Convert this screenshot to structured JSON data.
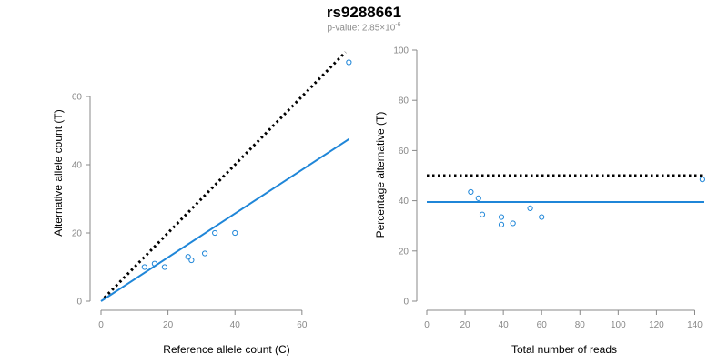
{
  "header": {
    "title": "rs9288661",
    "pvalue_prefix": "p-value: 2.85×10",
    "pvalue_exp": "-6"
  },
  "colors": {
    "points": "#1f86d8",
    "fit": "#1f86d8",
    "reference": "#000000",
    "axis": "#888888"
  },
  "chart_data": [
    {
      "type": "scatter",
      "xlabel": "Reference allele count (C)",
      "ylabel": "Alternative allele count (T)",
      "xlim": [
        0,
        72
      ],
      "ylim": [
        0,
        60
      ],
      "xticks": [
        0,
        20,
        40,
        60
      ],
      "yticks": [
        0,
        20,
        40,
        60
      ],
      "grid": false,
      "points": [
        {
          "x": 13,
          "y": 10
        },
        {
          "x": 16,
          "y": 11
        },
        {
          "x": 19,
          "y": 10
        },
        {
          "x": 26,
          "y": 13
        },
        {
          "x": 27,
          "y": 12
        },
        {
          "x": 31,
          "y": 14
        },
        {
          "x": 34,
          "y": 20
        },
        {
          "x": 40,
          "y": 20
        },
        {
          "x": 74,
          "y": 70
        }
      ],
      "lines": [
        {
          "style": "dotted",
          "color": "#000000",
          "from": [
            1,
            1
          ],
          "to": [
            73,
            73
          ]
        },
        {
          "style": "solid",
          "color": "#1f86d8",
          "from": [
            0,
            0
          ],
          "to": [
            74,
            47.5
          ]
        }
      ]
    },
    {
      "type": "scatter",
      "xlabel": "Total number of reads",
      "ylabel": "Percentage alternative (T)",
      "xlim": [
        0,
        145
      ],
      "ylim": [
        0,
        100
      ],
      "xticks": [
        0,
        20,
        40,
        60,
        80,
        100,
        120,
        140
      ],
      "yticks": [
        0,
        20,
        40,
        60,
        80,
        100
      ],
      "grid": false,
      "points": [
        {
          "x": 23,
          "y": 43.5
        },
        {
          "x": 27,
          "y": 41
        },
        {
          "x": 29,
          "y": 34.5
        },
        {
          "x": 39,
          "y": 33.5
        },
        {
          "x": 39,
          "y": 30.5
        },
        {
          "x": 45,
          "y": 31
        },
        {
          "x": 54,
          "y": 37
        },
        {
          "x": 60,
          "y": 33.5
        },
        {
          "x": 144,
          "y": 48.5
        }
      ],
      "lines": [
        {
          "style": "dotted",
          "color": "#000000",
          "from": [
            0,
            50
          ],
          "to": [
            145,
            50
          ]
        },
        {
          "style": "solid",
          "color": "#1f86d8",
          "from": [
            0,
            39.5
          ],
          "to": [
            145,
            39.5
          ]
        }
      ]
    }
  ]
}
